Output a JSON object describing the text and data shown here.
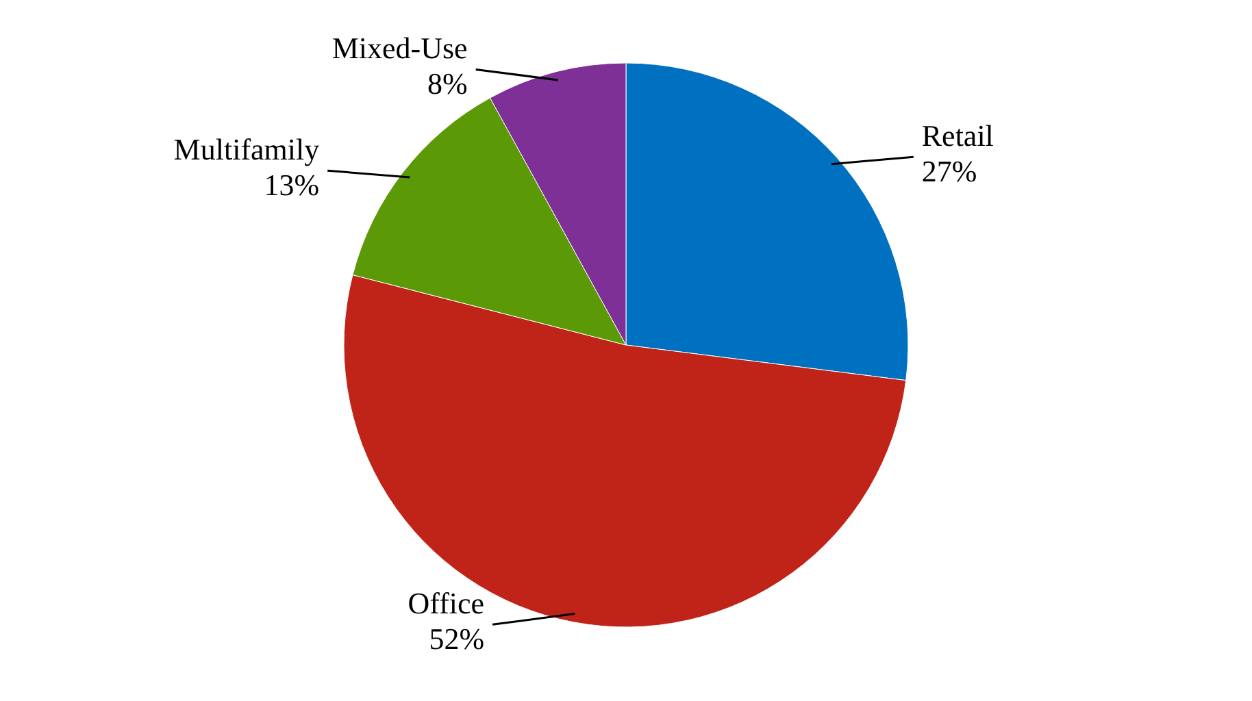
{
  "chart_data": {
    "type": "pie",
    "categories": [
      "Retail",
      "Office",
      "Multifamily",
      "Mixed-Use"
    ],
    "values": [
      27,
      52,
      13,
      8
    ],
    "colors": [
      "#0070c0",
      "#c02418",
      "#5b9a06",
      "#7f3096"
    ],
    "value_labels": [
      "27%",
      "52%",
      "13%",
      "8%"
    ]
  }
}
